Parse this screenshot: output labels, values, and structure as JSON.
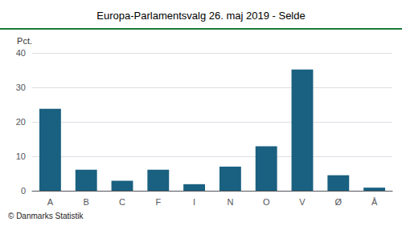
{
  "chart_data": {
    "type": "bar",
    "title": "Europa-Parlamentsvalg 26. maj 2019 - Selde",
    "ylabel": "Pct.",
    "footer": "© Danmarks Statistik",
    "categories": [
      "A",
      "B",
      "C",
      "F",
      "I",
      "N",
      "O",
      "V",
      "Ø",
      "Å"
    ],
    "values": [
      23.8,
      6.1,
      2.9,
      6.1,
      1.9,
      7.0,
      12.9,
      35.2,
      4.5,
      0.9
    ],
    "color": "#1a6080",
    "ylim": [
      0,
      40
    ],
    "yticks": [
      0,
      10,
      20,
      30,
      40
    ],
    "grid": true
  }
}
